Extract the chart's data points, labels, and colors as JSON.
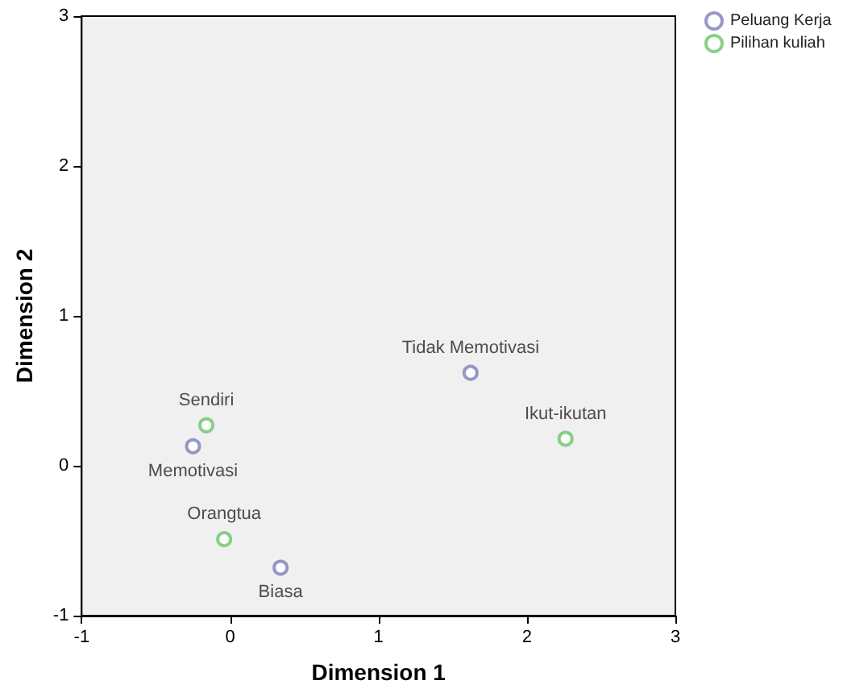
{
  "chart_data": {
    "type": "scatter",
    "xlabel": "Dimension 1",
    "ylabel": "Dimension 2",
    "xlim": [
      -1,
      3
    ],
    "xticks": [
      -1,
      0,
      1,
      2,
      3
    ],
    "ylim": [
      -1,
      3
    ],
    "yticks": [
      -1,
      0,
      1,
      2,
      3
    ],
    "grid": false,
    "legend": "top right",
    "marker": "circle",
    "series": [
      {
        "name": "Peluang Kerja",
        "color": "#7c80b8",
        "x": [
          1.62,
          -0.25,
          0.34
        ],
        "values": [
          0.62,
          0.13,
          -0.68
        ],
        "value_labels": [
          "Tidak Memotivasi",
          "Memotivasi",
          "Biasa"
        ]
      },
      {
        "name": "Pilihan kuliah",
        "color": "#6cc46c",
        "x": [
          2.26,
          -0.16,
          -0.04
        ],
        "values": [
          0.18,
          0.27,
          -0.49
        ],
        "value_labels": [
          "Ikut-ikutan",
          "Sendiri",
          "Orangtua"
        ]
      }
    ]
  }
}
